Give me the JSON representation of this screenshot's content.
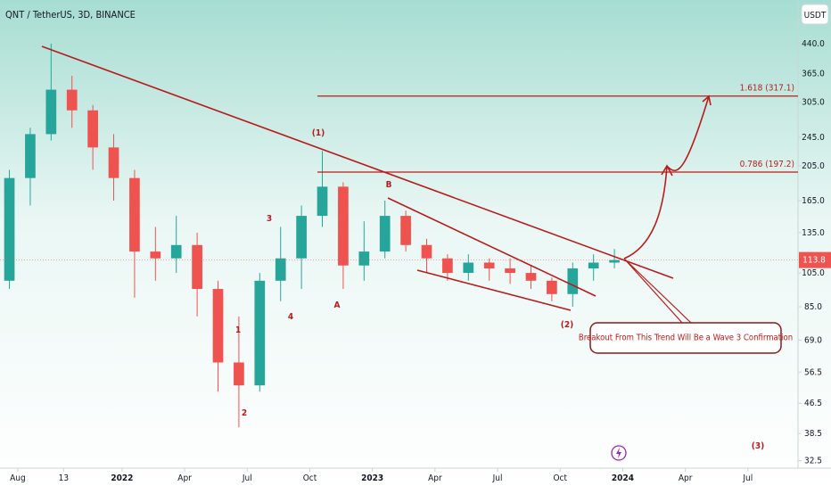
{
  "chart_data": {
    "type": "candlestick",
    "title": "QNT / TetherUS, 3D, BINANCE",
    "currency_button": "USDT",
    "log_scale": true,
    "ylim": [
      31,
      578
    ],
    "yticks": [
      {
        "value": 440,
        "label": "440.0"
      },
      {
        "value": 365,
        "label": "365.0"
      },
      {
        "value": 305,
        "label": "305.0"
      },
      {
        "value": 245,
        "label": "245.0"
      },
      {
        "value": 205,
        "label": "205.0"
      },
      {
        "value": 165,
        "label": "165.0"
      },
      {
        "value": 135,
        "label": "135.0"
      },
      {
        "value": 105,
        "label": "105.0"
      },
      {
        "value": 85,
        "label": "85.0"
      },
      {
        "value": 69,
        "label": "69.0"
      },
      56.5,
      46.5,
      38.5,
      32.5
    ],
    "xlim": [
      -0.85,
      37.4
    ],
    "xticks": [
      {
        "value": 0,
        "label": "Aug"
      },
      {
        "value": 2.2,
        "label": "13"
      },
      {
        "value": 5,
        "label": "2022"
      },
      {
        "value": 8,
        "label": "Apr"
      },
      {
        "value": 11,
        "label": "Jul"
      },
      {
        "value": 14,
        "label": "Oct"
      },
      {
        "value": 17,
        "label": "2023"
      },
      {
        "value": 20,
        "label": "Apr"
      },
      {
        "value": 23,
        "label": "Jul"
      },
      {
        "value": 26,
        "label": "Oct"
      },
      {
        "value": 29,
        "label": "2024"
      },
      {
        "value": 32,
        "label": "Apr"
      },
      {
        "value": 35,
        "label": "Jul"
      }
    ],
    "up_color": "#26a69a",
    "down_color": "#ef5350",
    "x": [
      -0.4,
      0.6,
      1.6,
      2.6,
      3.6,
      4.6,
      5.6,
      6.6,
      7.6,
      8.6,
      9.6,
      10.6,
      11.6,
      12.6,
      13.6,
      14.6,
      15.6,
      16.6,
      17.6,
      18.6,
      19.6,
      20.6,
      21.6,
      22.6,
      23.6,
      24.6,
      25.6,
      26.6,
      27.6,
      28.6
    ],
    "open": [
      100,
      190,
      250,
      330,
      290,
      230,
      190,
      120,
      115,
      125,
      95,
      60,
      52,
      100,
      115,
      150,
      180,
      110,
      120,
      150,
      125,
      115,
      105,
      112,
      108,
      105,
      100,
      92,
      108,
      112
    ],
    "high": [
      200,
      260,
      440,
      360,
      300,
      250,
      200,
      140,
      150,
      135,
      100,
      80,
      105,
      140,
      160,
      225,
      185,
      145,
      165,
      155,
      130,
      118,
      118,
      115,
      115,
      110,
      102,
      112,
      118,
      122
    ],
    "low": [
      95,
      160,
      240,
      260,
      200,
      165,
      90,
      100,
      105,
      80,
      50,
      40,
      50,
      88,
      95,
      140,
      95,
      100,
      115,
      120,
      105,
      100,
      100,
      100,
      98,
      95,
      88,
      85,
      100,
      108
    ],
    "close": [
      190,
      250,
      330,
      290,
      230,
      190,
      120,
      115,
      125,
      95,
      60,
      52,
      100,
      115,
      150,
      180,
      110,
      120,
      150,
      125,
      115,
      105,
      112,
      108,
      105,
      100,
      92,
      108,
      112,
      113.8
    ],
    "last_price": {
      "value": 113.8,
      "label": "113.8"
    },
    "fib_levels": [
      {
        "value": 317.1,
        "label": "1.618 (317.1)"
      },
      {
        "value": 197.2,
        "label": "0.786 (197.2)"
      }
    ],
    "wave_labels": [
      "(1)",
      "3",
      "B",
      "A",
      "4",
      "1",
      "2",
      "(2)",
      "(3)"
    ],
    "callout": "Breakout From This Trend Will Be a Wave 3 Confirmation"
  }
}
